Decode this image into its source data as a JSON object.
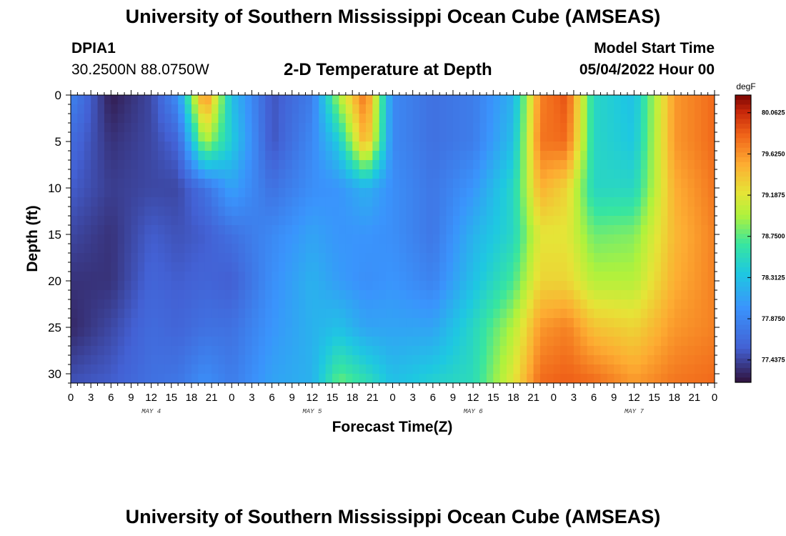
{
  "page": {
    "title_top": "University of Southern Mississippi Ocean Cube (AMSEAS)",
    "title_bottom": "University of Southern Mississippi Ocean Cube (AMSEAS)",
    "station_id": "DPIA1",
    "station_coords": "30.2500N  88.0750W",
    "model_label": "Model Start Time",
    "model_time": "05/04/2022 Hour 00"
  },
  "chart_data": {
    "type": "heatmap",
    "title": "2-D Temperature at Depth",
    "xlabel": "Forecast Time(Z)",
    "ylabel": "Depth (ft)",
    "units": "degF",
    "x_range_hours": [
      0,
      96
    ],
    "x_tick_step_hours": 3,
    "x_tick_labels": [
      "0",
      "3",
      "6",
      "9",
      "12",
      "15",
      "18",
      "21",
      "0",
      "3",
      "6",
      "9",
      "12",
      "15",
      "18",
      "21",
      "0",
      "3",
      "6",
      "9",
      "12",
      "15",
      "18",
      "21",
      "0",
      "3",
      "6",
      "9",
      "12",
      "15",
      "18",
      "21",
      "0"
    ],
    "day_labels": [
      {
        "label": "MAY 4",
        "hour": 12
      },
      {
        "label": "MAY 5",
        "hour": 36
      },
      {
        "label": "MAY 6",
        "hour": 60
      },
      {
        "label": "MAY 7",
        "hour": 84
      }
    ],
    "y_range_ft": [
      0,
      31
    ],
    "y_ticks": [
      0,
      5,
      10,
      15,
      20,
      25,
      30
    ],
    "colorbar_ticks": [
      "80.0625",
      "79.6250",
      "79.1875",
      "78.7500",
      "78.3125",
      "77.8750",
      "77.4375"
    ],
    "color_min": 77.2,
    "color_max": 80.25,
    "time_hours": [
      0,
      6,
      12,
      16,
      20,
      24,
      30,
      36,
      40,
      44,
      48,
      54,
      60,
      66,
      70,
      74,
      78,
      84,
      90,
      96
    ],
    "depth_ft": [
      0,
      5,
      10,
      15,
      20,
      25,
      31
    ],
    "temperature_degF": [
      [
        77.85,
        77.25,
        77.45,
        77.95,
        79.75,
        78.3,
        77.5,
        77.8,
        79.0,
        79.8,
        77.9,
        77.7,
        77.8,
        78.2,
        79.7,
        79.9,
        78.5,
        78.3,
        79.6,
        79.8
      ],
      [
        77.65,
        77.35,
        77.45,
        77.6,
        79.0,
        78.4,
        77.5,
        77.9,
        78.4,
        79.55,
        77.9,
        77.7,
        77.8,
        78.3,
        79.75,
        79.8,
        78.5,
        78.35,
        79.6,
        79.8
      ],
      [
        77.55,
        77.4,
        77.45,
        77.45,
        77.7,
        78.1,
        77.7,
        77.95,
        78.0,
        78.2,
        77.95,
        77.75,
        78.0,
        78.5,
        79.5,
        79.3,
        78.5,
        78.5,
        79.5,
        79.75
      ],
      [
        77.45,
        77.35,
        77.55,
        77.5,
        77.55,
        77.7,
        77.9,
        78.1,
        78.0,
        78.0,
        77.95,
        77.75,
        78.2,
        78.5,
        79.2,
        79.2,
        78.8,
        78.85,
        79.45,
        79.7
      ],
      [
        77.35,
        77.35,
        77.6,
        77.55,
        77.6,
        77.55,
        77.95,
        78.2,
        78.05,
        77.95,
        78.0,
        77.85,
        78.3,
        78.7,
        79.3,
        79.3,
        79.0,
        79.0,
        79.5,
        79.7
      ],
      [
        77.3,
        77.45,
        77.65,
        77.6,
        77.7,
        77.7,
        78.0,
        78.2,
        78.3,
        78.1,
        78.1,
        78.1,
        78.5,
        79.0,
        79.6,
        79.7,
        79.4,
        79.3,
        79.6,
        79.7
      ],
      [
        77.5,
        77.55,
        77.7,
        77.75,
        77.95,
        77.8,
        78.1,
        78.2,
        78.8,
        78.6,
        78.3,
        78.45,
        78.55,
        79.2,
        79.8,
        79.85,
        79.8,
        79.6,
        79.75,
        79.8
      ]
    ]
  }
}
